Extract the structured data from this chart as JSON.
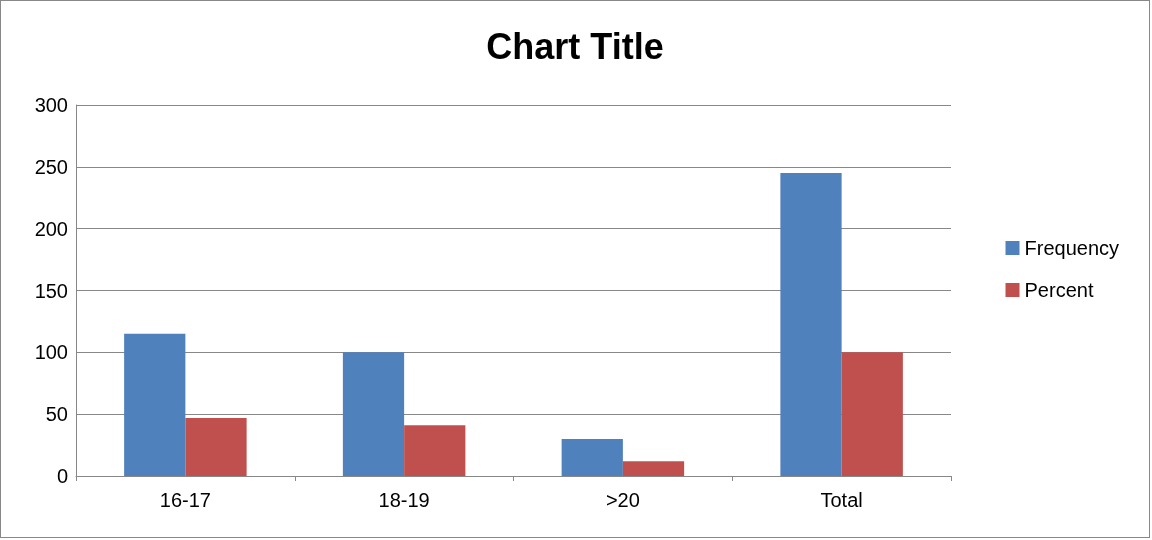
{
  "chart_data": {
    "type": "bar",
    "title": "Chart Title",
    "categories": [
      "16-17",
      "18-19",
      ">20",
      "Total"
    ],
    "series": [
      {
        "name": "Frequency",
        "color": "#4f81bd",
        "values": [
          115,
          100,
          30,
          245
        ]
      },
      {
        "name": "Percent",
        "color": "#c0504d",
        "values": [
          47,
          41,
          12,
          100
        ]
      }
    ],
    "ylim": [
      0,
      300
    ],
    "yticks": [
      0,
      50,
      100,
      150,
      200,
      250,
      300
    ],
    "grid": "y",
    "legend": "right"
  }
}
